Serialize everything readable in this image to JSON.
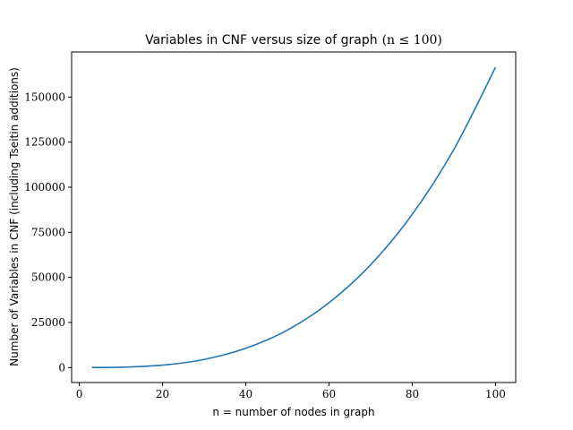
{
  "chart_data": {
    "type": "line",
    "title": "Variables in CNF versus size of graph",
    "title_math": "(n ≤ 100)",
    "xlabel": "n = number of nodes in graph",
    "ylabel": "Number of Variables in CNF (including Tseitin additions)",
    "xlim": [
      -1.85,
      104.85
    ],
    "ylim": [
      -8300,
      175000
    ],
    "xticks": [
      0,
      20,
      40,
      60,
      80,
      100
    ],
    "xtick_labels": [
      "0",
      "20",
      "40",
      "60",
      "80",
      "100"
    ],
    "yticks": [
      0,
      25000,
      50000,
      75000,
      100000,
      125000,
      150000
    ],
    "ytick_labels": [
      "0",
      "25000",
      "50000",
      "75000",
      "100000",
      "125000",
      "150000"
    ],
    "grid": false,
    "series": [
      {
        "color": "#1f77b4",
        "x": [
          3,
          10,
          20,
          30,
          40,
          50,
          60,
          70,
          80,
          90,
          100
        ],
        "y": [
          45,
          170,
          1340,
          4500,
          10700,
          20800,
          36000,
          57000,
          85000,
          121000,
          166500
        ]
      }
    ]
  }
}
